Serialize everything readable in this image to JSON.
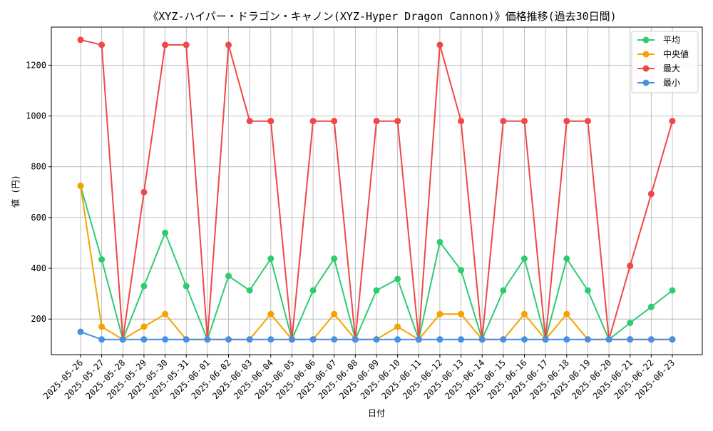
{
  "chart_data": {
    "type": "line",
    "title": "《XYZ-ハイパー・ドラゴン・キャノン(XYZ-Hyper Dragon Cannon)》価格推移(過去30日間)",
    "xlabel": "日付",
    "ylabel": "値 (円)",
    "x": [
      "2025-05-26",
      "2025-05-27",
      "2025-05-28",
      "2025-05-29",
      "2025-05-30",
      "2025-05-31",
      "2025-06-01",
      "2025-06-02",
      "2025-06-03",
      "2025-06-04",
      "2025-06-05",
      "2025-06-06",
      "2025-06-07",
      "2025-06-08",
      "2025-06-09",
      "2025-06-10",
      "2025-06-11",
      "2025-06-12",
      "2025-06-13",
      "2025-06-14",
      "2025-06-15",
      "2025-06-16",
      "2025-06-17",
      "2025-06-18",
      "2025-06-19",
      "2025-06-20",
      "2025-06-21",
      "2025-06-22",
      "2025-06-23"
    ],
    "ylim": [
      60,
      1350
    ],
    "yticks": [
      200,
      400,
      600,
      800,
      1000,
      1200
    ],
    "grid": true,
    "legend_position": "top-right",
    "series": [
      {
        "name": "平均",
        "color": "#2ecc71",
        "values": [
          725,
          435,
          120,
          330,
          540,
          330,
          120,
          370,
          313,
          438,
          120,
          313,
          438,
          120,
          313,
          358,
          120,
          503,
          393,
          120,
          313,
          438,
          120,
          438,
          313,
          120,
          185,
          248,
          313
        ]
      },
      {
        "name": "中央値",
        "color": "#f5a300",
        "values": [
          725,
          170,
          120,
          170,
          220,
          120,
          120,
          120,
          120,
          220,
          120,
          120,
          220,
          120,
          120,
          170,
          120,
          220,
          220,
          120,
          120,
          220,
          120,
          220,
          120,
          120,
          120,
          120,
          120
        ]
      },
      {
        "name": "最大",
        "color": "#f04848",
        "values": [
          1300,
          1280,
          120,
          700,
          1280,
          1280,
          120,
          1280,
          980,
          980,
          120,
          980,
          980,
          120,
          980,
          980,
          120,
          1280,
          980,
          120,
          980,
          980,
          120,
          980,
          980,
          120,
          410,
          693,
          980
        ]
      },
      {
        "name": "最小",
        "color": "#4a90e2",
        "values": [
          150,
          120,
          120,
          120,
          120,
          120,
          120,
          120,
          120,
          120,
          120,
          120,
          120,
          120,
          120,
          120,
          120,
          120,
          120,
          120,
          120,
          120,
          120,
          120,
          120,
          120,
          120,
          120,
          120
        ]
      }
    ]
  }
}
